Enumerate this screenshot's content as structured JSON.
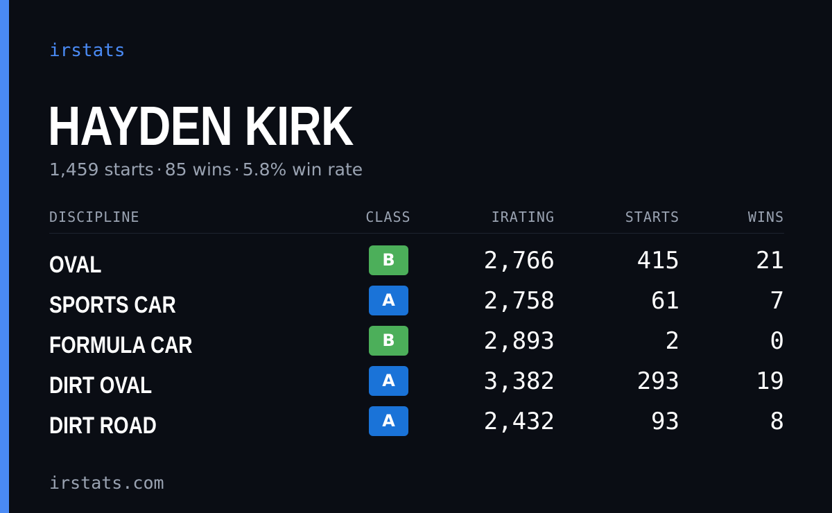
{
  "brand": "irstats",
  "player": {
    "name": "HAYDEN KIRK"
  },
  "summary": {
    "starts": "1,459 starts",
    "wins": "85 wins",
    "win_rate": "5.8% win rate",
    "separator": "·"
  },
  "table": {
    "headers": {
      "discipline": "DISCIPLINE",
      "class": "CLASS",
      "irating": "IRATING",
      "starts": "STARTS",
      "wins": "WINS"
    },
    "rows": [
      {
        "discipline": "OVAL",
        "class": "B",
        "irating": "2,766",
        "starts": "415",
        "wins": "21"
      },
      {
        "discipline": "SPORTS CAR",
        "class": "A",
        "irating": "2,758",
        "starts": "61",
        "wins": "7"
      },
      {
        "discipline": "FORMULA CAR",
        "class": "B",
        "irating": "2,893",
        "starts": "2",
        "wins": "0"
      },
      {
        "discipline": "DIRT OVAL",
        "class": "A",
        "irating": "3,382",
        "starts": "293",
        "wins": "19"
      },
      {
        "discipline": "DIRT ROAD",
        "class": "A",
        "irating": "2,432",
        "starts": "93",
        "wins": "8"
      }
    ]
  },
  "colors": {
    "background": "#0a0d14",
    "accent": "#4a8af4",
    "class_a": "#1a73d8",
    "class_b": "#4caf5a",
    "muted_text": "#9aa3b2"
  },
  "footer": {
    "url": "irstats.com"
  }
}
